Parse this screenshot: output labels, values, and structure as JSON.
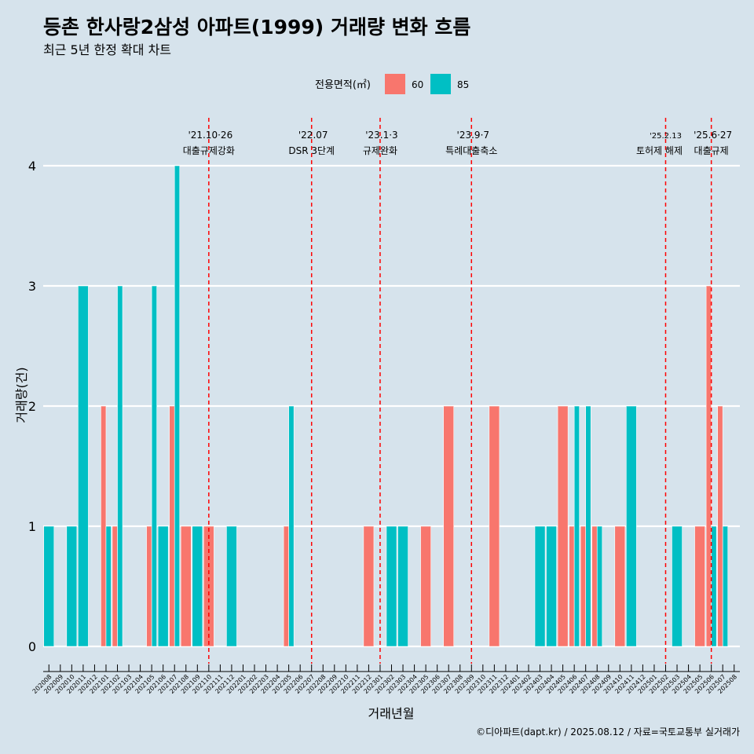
{
  "title": "등촌 한사랑2삼성 아파트(1999) 거래량 변화 흐름",
  "subtitle": "최근 5년 한정 확대 차트",
  "caption": "©디아파트(dapt.kr) / 2025.08.12 / 자료=국토교통부 실거래가",
  "legend": {
    "title": "전용면적(㎡)",
    "items": [
      {
        "label": "60",
        "color": "#f8766d"
      },
      {
        "label": "85",
        "color": "#00bfc4"
      }
    ]
  },
  "chart_data": {
    "type": "bar",
    "xlabel": "거래년월",
    "ylabel": "거래량(건)",
    "ylim": [
      0,
      4
    ],
    "yticks": [
      0,
      1,
      2,
      3,
      4
    ],
    "categories": [
      "202008",
      "202009",
      "202010",
      "202011",
      "202012",
      "202101",
      "202102",
      "202103",
      "202104",
      "202105",
      "202106",
      "202107",
      "202108",
      "202109",
      "202110",
      "202111",
      "202112",
      "202201",
      "202202",
      "202203",
      "202204",
      "202205",
      "202206",
      "202207",
      "202208",
      "202209",
      "202210",
      "202211",
      "202212",
      "202301",
      "202302",
      "202303",
      "202304",
      "202305",
      "202306",
      "202307",
      "202308",
      "202309",
      "202310",
      "202311",
      "202312",
      "202401",
      "202402",
      "202403",
      "202404",
      "202405",
      "202406",
      "202407",
      "202408",
      "202409",
      "202410",
      "202411",
      "202412",
      "202501",
      "202502",
      "202503",
      "202504",
      "202505",
      "202506",
      "202507",
      "202508"
    ],
    "series": [
      {
        "name": "60",
        "color": "#f8766d",
        "values": [
          0,
          0,
          0,
          0,
          0,
          2,
          1,
          0,
          0,
          1,
          0,
          2,
          1,
          0,
          1,
          0,
          0,
          0,
          0,
          0,
          0,
          1,
          0,
          0,
          0,
          0,
          0,
          0,
          1,
          0,
          0,
          0,
          0,
          1,
          0,
          2,
          0,
          0,
          0,
          2,
          0,
          0,
          0,
          0,
          0,
          2,
          1,
          1,
          1,
          0,
          1,
          0,
          0,
          0,
          0,
          0,
          0,
          1,
          3,
          2,
          0
        ]
      },
      {
        "name": "85",
        "color": "#00bfc4",
        "values": [
          1,
          0,
          1,
          3,
          0,
          1,
          3,
          0,
          0,
          3,
          1,
          4,
          0,
          1,
          0,
          0,
          1,
          0,
          0,
          0,
          0,
          2,
          0,
          0,
          0,
          0,
          0,
          0,
          0,
          0,
          1,
          1,
          0,
          0,
          0,
          0,
          0,
          0,
          0,
          0,
          0,
          0,
          0,
          1,
          1,
          0,
          2,
          2,
          1,
          0,
          0,
          2,
          0,
          0,
          0,
          1,
          0,
          0,
          1,
          1,
          0
        ]
      }
    ],
    "events": [
      {
        "at": "202110",
        "date": "'21.10·26",
        "label": "대출규제강화"
      },
      {
        "at": "202207",
        "date": "'22.07",
        "label": "DSR 3단계"
      },
      {
        "at": "202301",
        "date": "'23.1·3",
        "label": "규제완화"
      },
      {
        "at": "202309",
        "date": "'23.9·7",
        "label": "특례대출축소"
      },
      {
        "at": "202502",
        "date": "'25.2.13",
        "label": "토허제 해제"
      },
      {
        "at": "202506",
        "date": "'25.6·27",
        "label": "대출규제"
      }
    ],
    "grid": true,
    "legend_position": "top"
  }
}
